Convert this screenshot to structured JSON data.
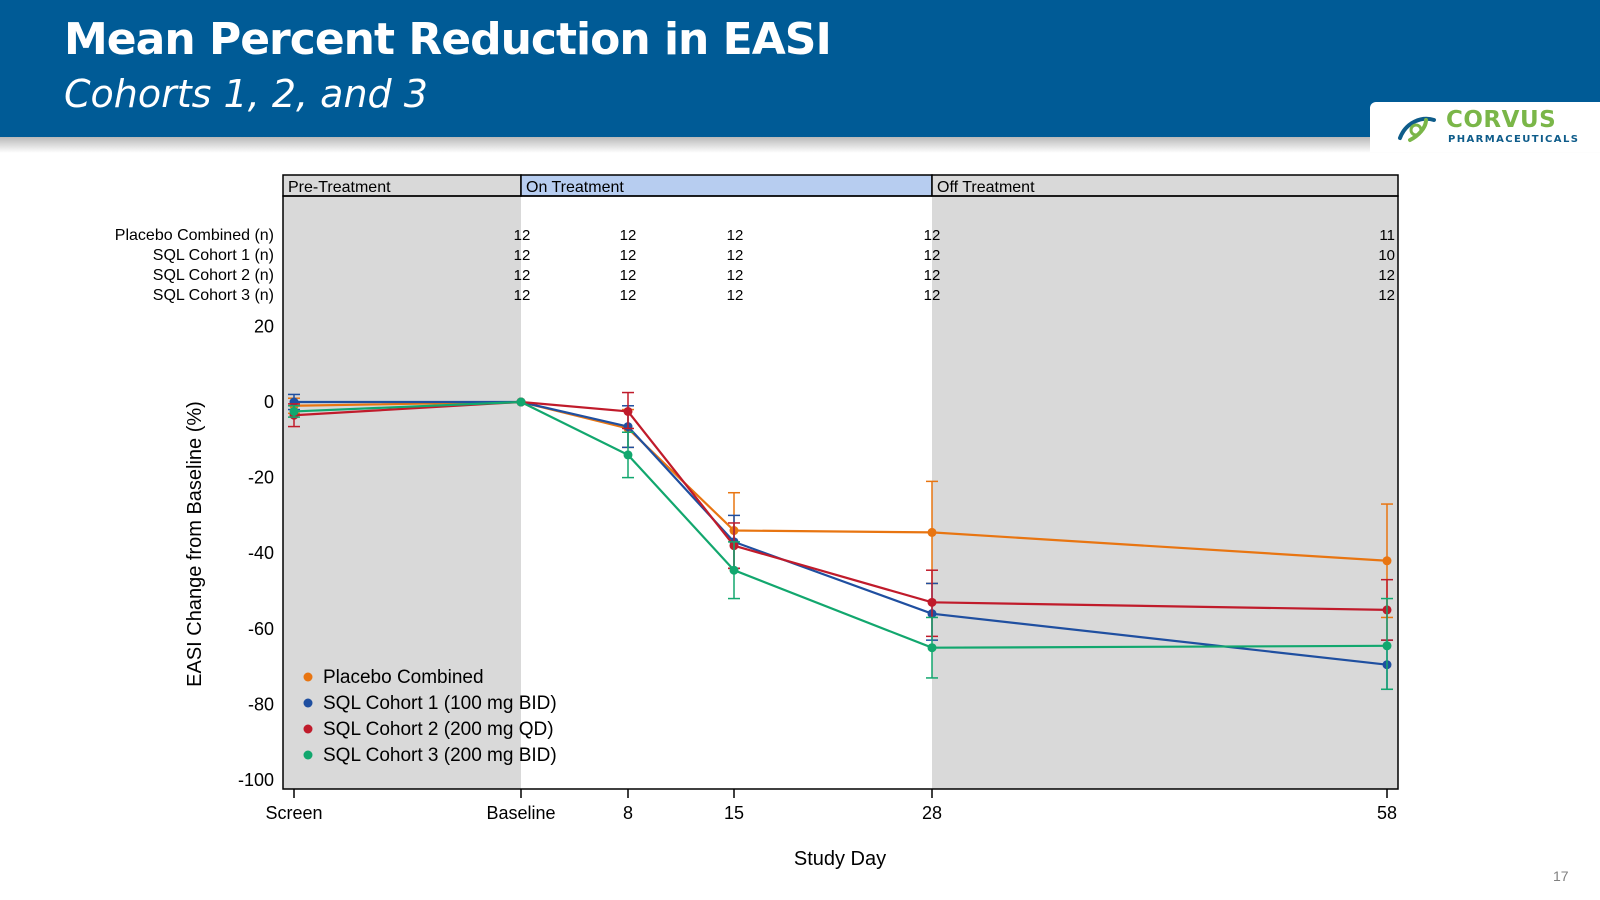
{
  "slide": {
    "title": "Mean Percent Reduction in EASI",
    "subtitle": "Cohorts 1, 2, and 3",
    "page_number": "17"
  },
  "logo": {
    "name": "CORVUS",
    "sub": "PHARMACEUTICALS"
  },
  "colors": {
    "header_bg": "#005b96",
    "placebo": "#e87511",
    "cohort1": "#1f4fa0",
    "cohort2": "#c01b2b",
    "cohort3": "#12a76e",
    "shade": "#d9d9d9",
    "on_treatment": "#b7cdf0"
  },
  "chart_data": {
    "type": "line",
    "xlabel": "Study Day",
    "ylabel": "EASI Change from Baseline (%)",
    "ylim": [
      -100,
      20
    ],
    "yticks": [
      20,
      0,
      -20,
      -40,
      -60,
      -80,
      -100
    ],
    "grid": false,
    "legend_position": "bottom-left",
    "categories": [
      "Screen",
      "Baseline",
      "8",
      "15",
      "28",
      "58"
    ],
    "x": [
      -52,
      0,
      8,
      15,
      28,
      58
    ],
    "periods": [
      {
        "label": "Pre-Treatment",
        "x_start": -52,
        "x_end": 0,
        "shaded": true
      },
      {
        "label": "On Treatment",
        "x_start": 0,
        "x_end": 28,
        "shaded": false
      },
      {
        "label": "Off Treatment",
        "x_start": 28,
        "x_end": 58,
        "shaded": true
      }
    ],
    "n_table": {
      "x": [
        0,
        8,
        15,
        28,
        58
      ],
      "rows": [
        {
          "label": "Placebo Combined (n)",
          "values": [
            "12",
            "12",
            "12",
            "12",
            "11"
          ]
        },
        {
          "label": "SQL Cohort 1 (n)",
          "values": [
            "12",
            "12",
            "12",
            "12",
            "10"
          ]
        },
        {
          "label": "SQL Cohort 2 (n)",
          "values": [
            "12",
            "12",
            "12",
            "12",
            "12"
          ]
        },
        {
          "label": "SQL Cohort 3 (n)",
          "values": [
            "12",
            "12",
            "12",
            "12",
            "12"
          ]
        }
      ]
    },
    "series": [
      {
        "name": "Placebo Combined",
        "color_key": "placebo",
        "values": [
          -1,
          0,
          -7,
          -34,
          -34.5,
          -42
        ],
        "err_low": [
          -3,
          0,
          -12,
          -44,
          -48,
          -57
        ],
        "err_high": [
          1,
          0,
          -2,
          -24,
          -21,
          -27
        ]
      },
      {
        "name": "SQL Cohort 1 (100 mg BID)",
        "color_key": "cohort1",
        "values": [
          0,
          0,
          -6.5,
          -37,
          -56,
          -69.5
        ],
        "err_low": [
          -2,
          0,
          -12,
          -44,
          -63,
          -76
        ],
        "err_high": [
          2,
          0,
          -1,
          -30,
          -48,
          -63
        ]
      },
      {
        "name": "SQL Cohort 2 (200 mg QD)",
        "color_key": "cohort2",
        "values": [
          -3.5,
          0,
          -2.5,
          -38,
          -53,
          -55
        ],
        "err_low": [
          -6.5,
          0,
          -7,
          -44,
          -62,
          -63
        ],
        "err_high": [
          -0.5,
          0,
          2.5,
          -32,
          -44.5,
          -47
        ]
      },
      {
        "name": "SQL Cohort 3 (200 mg BID)",
        "color_key": "cohort3",
        "values": [
          -2.5,
          0,
          -14,
          -44.5,
          -65,
          -64.5
        ],
        "err_low": [
          -4,
          0,
          -20,
          -52,
          -73,
          -76
        ],
        "err_high": [
          -1,
          0,
          -8,
          -37,
          -57,
          -52
        ]
      }
    ]
  }
}
